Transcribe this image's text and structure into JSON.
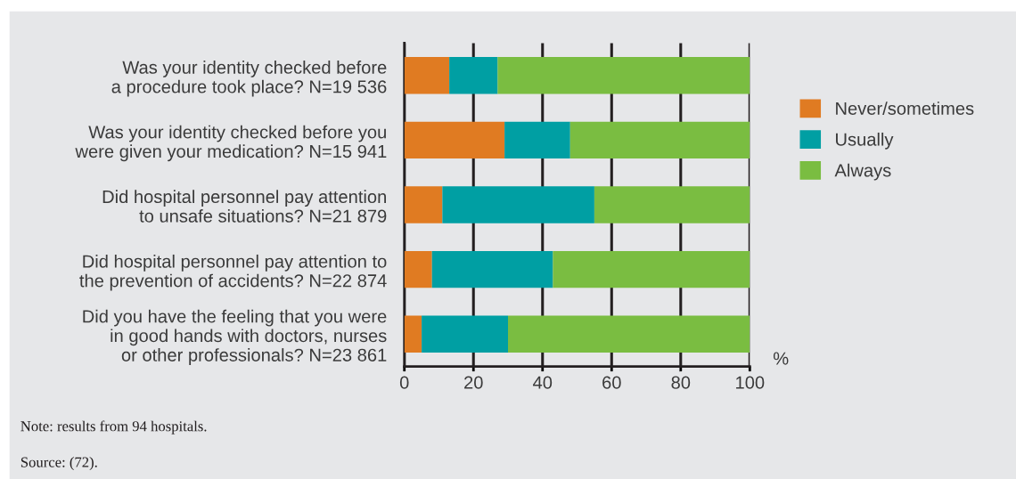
{
  "chart_data": {
    "type": "bar",
    "orientation": "horizontal",
    "stacked": true,
    "categories": [
      "Was your identity checked before\na procedure took place? N=19 536",
      "Was your identity checked before you\nwere given your medication? N=15 941",
      "Did hospital personnel pay attention\nto unsafe situations? N=21 879",
      "Did hospital personnel pay attention to\nthe prevention of accidents? N=22 874",
      "Did you have the feeling that you were\nin good hands with doctors, nurses\nor other professionals? N=23 861"
    ],
    "series": [
      {
        "name": "Never/sometimes",
        "color": "#e07b22",
        "values": [
          13,
          29,
          11,
          8,
          5
        ]
      },
      {
        "name": "Usually",
        "color": "#009fa3",
        "values": [
          14,
          19,
          44,
          35,
          25
        ]
      },
      {
        "name": "Always",
        "color": "#7abd41",
        "values": [
          73,
          52,
          45,
          57,
          70
        ]
      }
    ],
    "xlabel": "%",
    "xlim": [
      0,
      100
    ],
    "xticks": [
      0,
      20,
      40,
      60,
      80,
      100
    ],
    "grid": "x",
    "legend": "right",
    "annotations": [
      "Note: results from 94 hospitals.",
      "Source: (72)."
    ]
  }
}
